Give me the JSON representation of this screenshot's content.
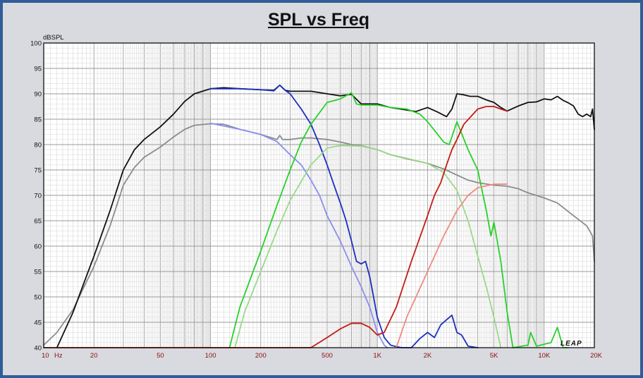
{
  "chart_data": {
    "type": "line",
    "title": "SPL vs Freq",
    "ylabel": "dBSPL",
    "x_unit_label": "Hz",
    "watermark": "LEAP",
    "x_scale": "log",
    "xlim": [
      10,
      20000
    ],
    "ylim": [
      40,
      100
    ],
    "grid": true,
    "x_tick_labels": [
      {
        "value": 10,
        "label": "10"
      },
      {
        "value": 20,
        "label": "20"
      },
      {
        "value": 50,
        "label": "50"
      },
      {
        "value": 100,
        "label": "100"
      },
      {
        "value": 200,
        "label": "200"
      },
      {
        "value": 500,
        "label": "500"
      },
      {
        "value": 1000,
        "label": "1K"
      },
      {
        "value": 2000,
        "label": "2K"
      },
      {
        "value": 5000,
        "label": "5K"
      },
      {
        "value": 10000,
        "label": "10K"
      },
      {
        "value": 20000,
        "label": "20K"
      }
    ],
    "y_ticks": [
      40,
      45,
      50,
      55,
      60,
      65,
      70,
      75,
      80,
      85,
      90,
      95,
      100
    ],
    "series": [
      {
        "color": "#8c8c8c",
        "width": 1.8,
        "points": [
          [
            10,
            40.5
          ],
          [
            12,
            43
          ],
          [
            15,
            47.5
          ],
          [
            20,
            56
          ],
          [
            25,
            64
          ],
          [
            30,
            72
          ],
          [
            35,
            75.5
          ],
          [
            40,
            77.5
          ],
          [
            50,
            79.5
          ],
          [
            60,
            81.5
          ],
          [
            70,
            83
          ],
          [
            80,
            83.8
          ],
          [
            100,
            84.1
          ],
          [
            120,
            84
          ],
          [
            150,
            83
          ],
          [
            200,
            82
          ],
          [
            250,
            81
          ],
          [
            260,
            81.8
          ],
          [
            270,
            81
          ],
          [
            300,
            81
          ],
          [
            350,
            81.3
          ],
          [
            400,
            81.3
          ],
          [
            500,
            81
          ],
          [
            600,
            80.5
          ],
          [
            700,
            80
          ],
          [
            800,
            79.8
          ],
          [
            1000,
            79
          ],
          [
            1200,
            78
          ],
          [
            1500,
            77.2
          ],
          [
            2000,
            76.3
          ],
          [
            2500,
            75.2
          ],
          [
            3000,
            74
          ],
          [
            3500,
            73
          ],
          [
            4000,
            72.5
          ],
          [
            5000,
            72
          ],
          [
            6000,
            71.8
          ],
          [
            7000,
            71.3
          ],
          [
            8000,
            70.5
          ],
          [
            10000,
            69.5
          ],
          [
            12000,
            68.5
          ],
          [
            15000,
            66
          ],
          [
            18000,
            64
          ],
          [
            19500,
            62
          ],
          [
            20000,
            57
          ]
        ]
      },
      {
        "color": "#111111",
        "width": 1.8,
        "points": [
          [
            12,
            40
          ],
          [
            15,
            47
          ],
          [
            18,
            54
          ],
          [
            20,
            58
          ],
          [
            25,
            67
          ],
          [
            30,
            75
          ],
          [
            35,
            79
          ],
          [
            40,
            81
          ],
          [
            50,
            83.5
          ],
          [
            60,
            86
          ],
          [
            70,
            88.5
          ],
          [
            80,
            90
          ],
          [
            100,
            91
          ],
          [
            120,
            91.2
          ],
          [
            150,
            91
          ],
          [
            200,
            90.8
          ],
          [
            240,
            90.7
          ],
          [
            260,
            91.7
          ],
          [
            280,
            90.7
          ],
          [
            300,
            90.5
          ],
          [
            400,
            90.5
          ],
          [
            500,
            90
          ],
          [
            600,
            89.6
          ],
          [
            700,
            89.9
          ],
          [
            800,
            88
          ],
          [
            1000,
            88
          ],
          [
            1200,
            87.3
          ],
          [
            1500,
            86.8
          ],
          [
            1700,
            86.5
          ],
          [
            2000,
            87.3
          ],
          [
            2300,
            86.4
          ],
          [
            2600,
            85.5
          ],
          [
            2800,
            87
          ],
          [
            3000,
            90
          ],
          [
            3300,
            89.8
          ],
          [
            3600,
            89.5
          ],
          [
            4000,
            89.5
          ],
          [
            4500,
            88.8
          ],
          [
            5000,
            88.3
          ],
          [
            5500,
            87.3
          ],
          [
            6000,
            86.6
          ],
          [
            7000,
            87.6
          ],
          [
            8000,
            88.3
          ],
          [
            9000,
            88.4
          ],
          [
            10000,
            89
          ],
          [
            11000,
            88.8
          ],
          [
            12000,
            89.5
          ],
          [
            13000,
            88.7
          ],
          [
            14000,
            88.2
          ],
          [
            15000,
            87.6
          ],
          [
            16000,
            86
          ],
          [
            17000,
            85.5
          ],
          [
            18000,
            86
          ],
          [
            19000,
            85.5
          ],
          [
            19500,
            87
          ],
          [
            20000,
            83
          ]
        ]
      },
      {
        "color": "#1a2fc0",
        "width": 1.8,
        "points": [
          [
            100,
            91
          ],
          [
            150,
            91
          ],
          [
            200,
            90.8
          ],
          [
            240,
            90.6
          ],
          [
            260,
            91.7
          ],
          [
            280,
            90.7
          ],
          [
            300,
            90
          ],
          [
            350,
            87
          ],
          [
            400,
            84
          ],
          [
            450,
            80
          ],
          [
            500,
            76
          ],
          [
            550,
            72
          ],
          [
            600,
            68.5
          ],
          [
            650,
            65
          ],
          [
            700,
            61
          ],
          [
            750,
            57
          ],
          [
            800,
            56.5
          ],
          [
            850,
            57
          ],
          [
            900,
            54
          ],
          [
            1000,
            46
          ],
          [
            1100,
            42
          ],
          [
            1200,
            40.5
          ],
          [
            1300,
            40.2
          ],
          [
            1400,
            40
          ],
          [
            1600,
            40
          ],
          [
            1800,
            41.8
          ],
          [
            2000,
            43
          ],
          [
            2200,
            42
          ],
          [
            2400,
            44.5
          ],
          [
            2600,
            45.5
          ],
          [
            2800,
            46.4
          ],
          [
            3000,
            43
          ],
          [
            3200,
            42.5
          ],
          [
            3500,
            40.3
          ],
          [
            4000,
            40
          ]
        ]
      },
      {
        "color": "#8a8ff0",
        "width": 1.8,
        "points": [
          [
            100,
            84.2
          ],
          [
            150,
            83
          ],
          [
            200,
            82
          ],
          [
            250,
            80.6
          ],
          [
            300,
            78
          ],
          [
            350,
            76
          ],
          [
            400,
            73
          ],
          [
            450,
            70
          ],
          [
            500,
            66
          ],
          [
            600,
            61
          ],
          [
            700,
            56
          ],
          [
            800,
            52
          ],
          [
            900,
            48
          ],
          [
            1000,
            43
          ],
          [
            1100,
            40.5
          ],
          [
            1150,
            40
          ]
        ]
      },
      {
        "color": "#27d12a",
        "width": 1.8,
        "points": [
          [
            130,
            40
          ],
          [
            150,
            48
          ],
          [
            180,
            55
          ],
          [
            200,
            59
          ],
          [
            250,
            68
          ],
          [
            300,
            75
          ],
          [
            350,
            80.5
          ],
          [
            400,
            84
          ],
          [
            500,
            88.3
          ],
          [
            600,
            89
          ],
          [
            700,
            90.2
          ],
          [
            750,
            88
          ],
          [
            800,
            87.8
          ],
          [
            1000,
            87.8
          ],
          [
            1200,
            87.3
          ],
          [
            1500,
            87
          ],
          [
            1800,
            86
          ],
          [
            2000,
            84.5
          ],
          [
            2200,
            82.8
          ],
          [
            2500,
            80.5
          ],
          [
            2700,
            80
          ],
          [
            3000,
            84.5
          ],
          [
            3500,
            79
          ],
          [
            4000,
            75
          ],
          [
            4500,
            67
          ],
          [
            4800,
            62
          ],
          [
            5000,
            64.7
          ],
          [
            5500,
            57
          ],
          [
            6000,
            47
          ],
          [
            6500,
            40
          ],
          [
            8000,
            40.5
          ],
          [
            8300,
            43
          ],
          [
            9000,
            40.3
          ],
          [
            11000,
            41
          ],
          [
            12000,
            44
          ],
          [
            13000,
            40
          ],
          [
            14000,
            40
          ]
        ]
      },
      {
        "color": "#9ad98a",
        "width": 1.8,
        "points": [
          [
            140,
            40
          ],
          [
            160,
            47
          ],
          [
            200,
            55
          ],
          [
            250,
            63
          ],
          [
            300,
            69
          ],
          [
            400,
            76
          ],
          [
            500,
            79.3
          ],
          [
            600,
            79.8
          ],
          [
            800,
            79.7
          ],
          [
            1000,
            79
          ],
          [
            1200,
            78
          ],
          [
            1500,
            77.3
          ],
          [
            2000,
            76.3
          ],
          [
            2500,
            74.5
          ],
          [
            3000,
            71
          ],
          [
            3500,
            65
          ],
          [
            4000,
            58
          ],
          [
            4500,
            52
          ],
          [
            5000,
            46
          ],
          [
            5500,
            40
          ]
        ]
      },
      {
        "color": "#c41a12",
        "width": 1.8,
        "points": [
          [
            10,
            40
          ],
          [
            400,
            40
          ],
          [
            500,
            42
          ],
          [
            600,
            43.7
          ],
          [
            700,
            44.8
          ],
          [
            800,
            44.8
          ],
          [
            900,
            44
          ],
          [
            1000,
            42.5
          ],
          [
            1100,
            43
          ],
          [
            1300,
            48
          ],
          [
            1600,
            57
          ],
          [
            2000,
            66
          ],
          [
            2200,
            70
          ],
          [
            2400,
            72.5
          ],
          [
            2600,
            76
          ],
          [
            2800,
            79
          ],
          [
            3000,
            81
          ],
          [
            3300,
            84
          ],
          [
            4000,
            87
          ],
          [
            4500,
            87.5
          ],
          [
            5000,
            87.5
          ],
          [
            5500,
            87
          ],
          [
            6000,
            86.6
          ]
        ]
      },
      {
        "color": "#f08a82",
        "width": 1.8,
        "points": [
          [
            1300,
            40
          ],
          [
            1500,
            46
          ],
          [
            2000,
            55
          ],
          [
            2500,
            62
          ],
          [
            3000,
            67
          ],
          [
            3500,
            70
          ],
          [
            4000,
            71.5
          ],
          [
            5000,
            72.2
          ],
          [
            6000,
            72.2
          ]
        ]
      }
    ]
  }
}
